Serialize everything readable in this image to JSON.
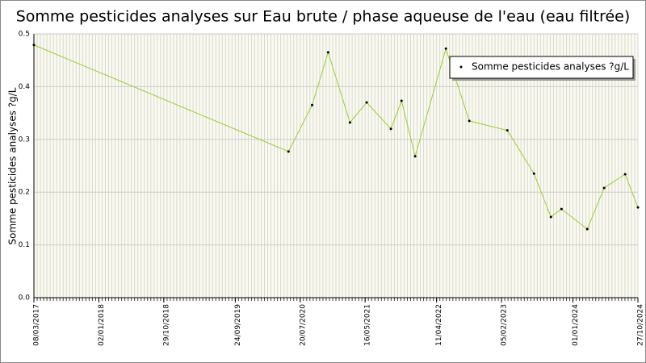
{
  "chart_data": {
    "type": "line",
    "title": "Somme pesticides analyses sur Eau brute / phase aqueuse de l'eau (eau filtrée)",
    "y_label": "Somme pesticides analyses ?g/L",
    "x": [
      "08/03/2017",
      "27/05/2020",
      "13/09/2020",
      "26/11/2020",
      "07/03/2021",
      "23/05/2021",
      "12/09/2021",
      "31/10/2021",
      "02/01/2022",
      "24/05/2022",
      "09/09/2022",
      "04/03/2023",
      "05/07/2023",
      "21/09/2023",
      "09/11/2023",
      "07/03/2024",
      "24/05/2024",
      "29/08/2024",
      "27/10/2024"
    ],
    "series": [
      {
        "name": "Somme pesticides analyses ?g/L",
        "color": "#9acd32",
        "values": [
          0.479,
          0.277,
          0.365,
          0.465,
          0.332,
          0.37,
          0.32,
          0.373,
          0.268,
          0.472,
          0.335,
          0.317,
          0.235,
          0.153,
          0.168,
          0.13,
          0.208,
          0.234,
          0.171
        ]
      }
    ],
    "xlim": [
      "08/03/2017",
      "27/10/2024"
    ],
    "xticks": [
      "08/03/2017",
      "02/01/2018",
      "29/10/2018",
      "24/09/2019",
      "20/07/2020",
      "16/05/2021",
      "11/04/2022",
      "05/02/2023",
      "01/01/2024",
      "27/10/2024"
    ],
    "ylim": [
      0,
      0.5
    ],
    "yticks": [
      {
        "value": 0,
        "label": "0.0"
      },
      0.1,
      0.2,
      0.3,
      0.4,
      0.5
    ],
    "grid": true,
    "legend": "top-right"
  }
}
